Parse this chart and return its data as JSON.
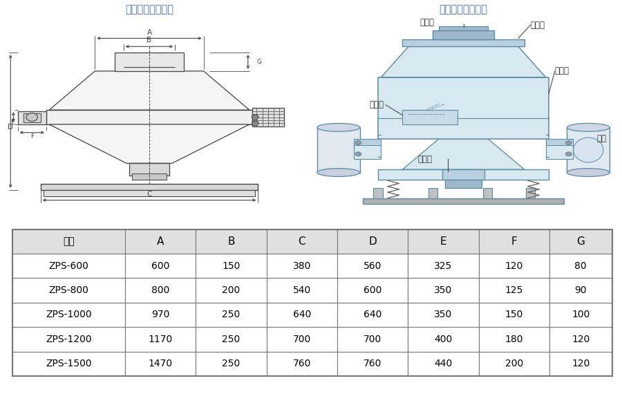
{
  "title_left": "直排筛外形尺寸图",
  "title_right": "直排筛外形结构图",
  "title_color": "#4472c4",
  "table_headers": [
    "型号",
    "A",
    "B",
    "C",
    "D",
    "E",
    "F",
    "G"
  ],
  "table_rows": [
    [
      "ZPS-600",
      "600",
      "150",
      "380",
      "560",
      "325",
      "120",
      "80"
    ],
    [
      "ZPS-800",
      "800",
      "200",
      "540",
      "600",
      "350",
      "125",
      "90"
    ],
    [
      "ZPS-1000",
      "970",
      "250",
      "640",
      "640",
      "350",
      "150",
      "100"
    ],
    [
      "ZPS-1200",
      "1170",
      "250",
      "700",
      "700",
      "400",
      "180",
      "120"
    ],
    [
      "ZPS-1500",
      "1470",
      "250",
      "760",
      "760",
      "440",
      "200",
      "120"
    ]
  ],
  "header_bg": "#e0e0e0",
  "border_color": "#888888",
  "text_color": "#000000",
  "line_color": "#444444",
  "struct_line_color": "#5a8a9f",
  "struct_fill_light": "#d8e8f0",
  "struct_fill_mid": "#b8d0e0",
  "struct_fill_dark": "#a0b8cc",
  "struct_labels": {
    "jin_liao_kou": "进料口",
    "fang_chen_gai": "防尘盖",
    "shang_kuang_ti": "上框体",
    "pai_za_kou": "排杂口",
    "chu_liao_kou": "出料口",
    "dian_ji": "电机"
  }
}
